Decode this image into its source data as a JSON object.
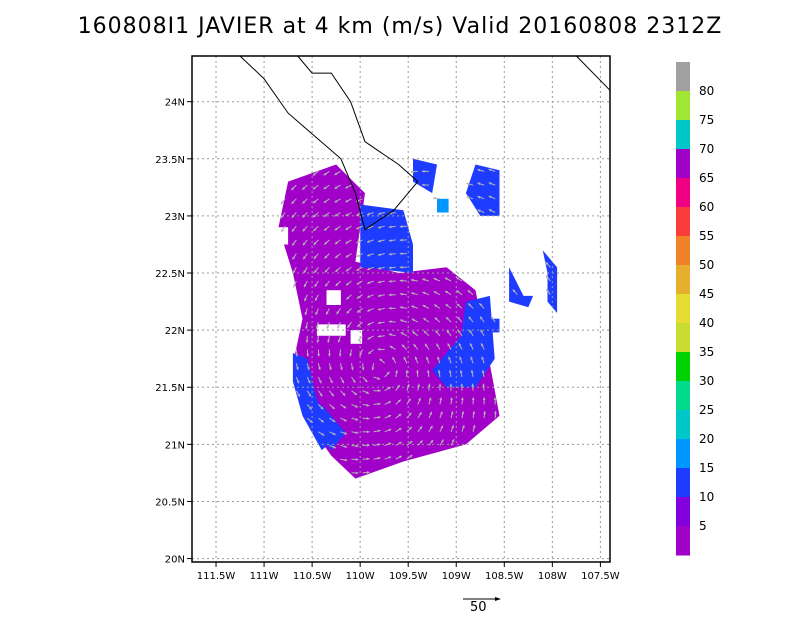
{
  "chart_data": {
    "type": "heatmap",
    "title": "160808I1 JAVIER at 4 km (m/s) Valid 20160808 2312Z",
    "xlabel": "",
    "ylabel": "",
    "x_ticks": [
      "111.5W",
      "111W",
      "110.5W",
      "110W",
      "109.5W",
      "109W",
      "108.5W",
      "108W",
      "107.5W"
    ],
    "y_ticks": [
      "24N",
      "23.5N",
      "23N",
      "22.5N",
      "22N",
      "21.5N",
      "21N",
      "20.5N",
      "20N"
    ],
    "xlim": [
      -111.75,
      -107.4
    ],
    "ylim": [
      19.97,
      24.4
    ],
    "grid": true,
    "colorbar": {
      "labels": [
        "80",
        "75",
        "70",
        "65",
        "60",
        "55",
        "50",
        "45",
        "40",
        "35",
        "30",
        "25",
        "20",
        "15",
        "10",
        "5"
      ],
      "colors": [
        "#a0a0a0",
        "#a0e632",
        "#00c8c8",
        "#a000c8",
        "#f00082",
        "#fa3c3c",
        "#f08228",
        "#e6af2d",
        "#e6dc32",
        "#c8dc32",
        "#00d200",
        "#00dc8c",
        "#00c8c8",
        "#0096ff",
        "#1e3cff",
        "#8200dc",
        "#a000c8"
      ]
    },
    "reference_vector": {
      "label": "50",
      "value": 50
    },
    "purple_regions": [
      [
        [
          -110.75,
          23.3
        ],
        [
          -110.25,
          23.45
        ],
        [
          -109.95,
          23.2
        ],
        [
          -110.05,
          22.6
        ],
        [
          -109.6,
          22.5
        ],
        [
          -109.1,
          22.55
        ],
        [
          -108.8,
          22.35
        ],
        [
          -108.65,
          21.7
        ],
        [
          -108.55,
          21.25
        ],
        [
          -108.9,
          21.0
        ],
        [
          -109.55,
          20.85
        ],
        [
          -110.05,
          20.7
        ],
        [
          -110.3,
          20.9
        ],
        [
          -110.55,
          21.2
        ],
        [
          -110.7,
          21.7
        ],
        [
          -110.6,
          22.1
        ],
        [
          -110.7,
          22.5
        ],
        [
          -110.85,
          22.9
        ]
      ]
    ],
    "blue_regions": [
      [
        [
          -110.0,
          23.1
        ],
        [
          -109.55,
          23.05
        ],
        [
          -109.45,
          22.75
        ],
        [
          -109.45,
          22.5
        ],
        [
          -110.0,
          22.55
        ]
      ],
      [
        [
          -108.9,
          22.25
        ],
        [
          -108.65,
          22.3
        ],
        [
          -108.6,
          21.75
        ],
        [
          -108.8,
          21.5
        ],
        [
          -109.1,
          21.5
        ],
        [
          -109.25,
          21.65
        ],
        [
          -108.95,
          21.95
        ]
      ],
      [
        [
          -110.7,
          21.8
        ],
        [
          -110.55,
          21.75
        ],
        [
          -110.45,
          21.4
        ],
        [
          -110.25,
          21.05
        ],
        [
          -110.4,
          20.95
        ],
        [
          -110.6,
          21.25
        ],
        [
          -110.7,
          21.55
        ]
      ],
      [
        [
          -110.4,
          21.35
        ],
        [
          -110.15,
          21.1
        ],
        [
          -110.3,
          20.95
        ],
        [
          -110.5,
          21.15
        ]
      ],
      [
        [
          -109.45,
          23.5
        ],
        [
          -109.2,
          23.45
        ],
        [
          -109.25,
          23.2
        ],
        [
          -109.45,
          23.3
        ]
      ],
      [
        [
          -108.8,
          23.45
        ],
        [
          -108.55,
          23.4
        ],
        [
          -108.55,
          23.0
        ],
        [
          -108.75,
          23.0
        ],
        [
          -108.9,
          23.2
        ]
      ],
      [
        [
          -108.45,
          22.55
        ],
        [
          -108.3,
          22.3
        ],
        [
          -108.2,
          22.3
        ],
        [
          -108.25,
          22.2
        ],
        [
          -108.45,
          22.25
        ]
      ],
      [
        [
          -108.7,
          22.1
        ],
        [
          -108.55,
          22.1
        ],
        [
          -108.55,
          21.98
        ],
        [
          -108.7,
          21.98
        ]
      ],
      [
        [
          -108.1,
          22.7
        ],
        [
          -107.95,
          22.55
        ],
        [
          -107.95,
          22.15
        ],
        [
          -108.05,
          22.25
        ],
        [
          -108.05,
          22.5
        ]
      ]
    ],
    "light_blue_regions": [
      [
        [
          -109.2,
          23.15
        ],
        [
          -109.08,
          23.15
        ],
        [
          -109.08,
          23.03
        ],
        [
          -109.2,
          23.03
        ]
      ]
    ],
    "holes": [
      [
        [
          -110.35,
          22.35
        ],
        [
          -110.2,
          22.35
        ],
        [
          -110.2,
          22.22
        ],
        [
          -110.35,
          22.22
        ]
      ],
      [
        [
          -110.45,
          22.05
        ],
        [
          -110.15,
          22.05
        ],
        [
          -110.15,
          21.95
        ],
        [
          -110.45,
          21.95
        ]
      ],
      [
        [
          -110.1,
          22.0
        ],
        [
          -109.98,
          22.0
        ],
        [
          -109.98,
          21.88
        ],
        [
          -110.1,
          21.88
        ]
      ],
      [
        [
          -110.9,
          22.9
        ],
        [
          -110.75,
          22.9
        ],
        [
          -110.75,
          22.75
        ],
        [
          -110.9,
          22.75
        ]
      ]
    ],
    "coastlines": [
      [
        [
          -111.25,
          24.4
        ],
        [
          -111.0,
          24.2
        ],
        [
          -110.75,
          23.9
        ],
        [
          -110.2,
          23.5
        ],
        [
          -110.05,
          23.2
        ],
        [
          -109.95,
          22.88
        ],
        [
          -109.65,
          23.05
        ],
        [
          -109.4,
          23.3
        ],
        [
          -109.6,
          23.45
        ],
        [
          -109.95,
          23.65
        ],
        [
          -110.1,
          24.0
        ],
        [
          -110.3,
          24.25
        ],
        [
          -110.5,
          24.25
        ],
        [
          -110.65,
          24.4
        ]
      ],
      [
        [
          -107.75,
          24.4
        ],
        [
          -107.4,
          24.1
        ]
      ]
    ]
  }
}
